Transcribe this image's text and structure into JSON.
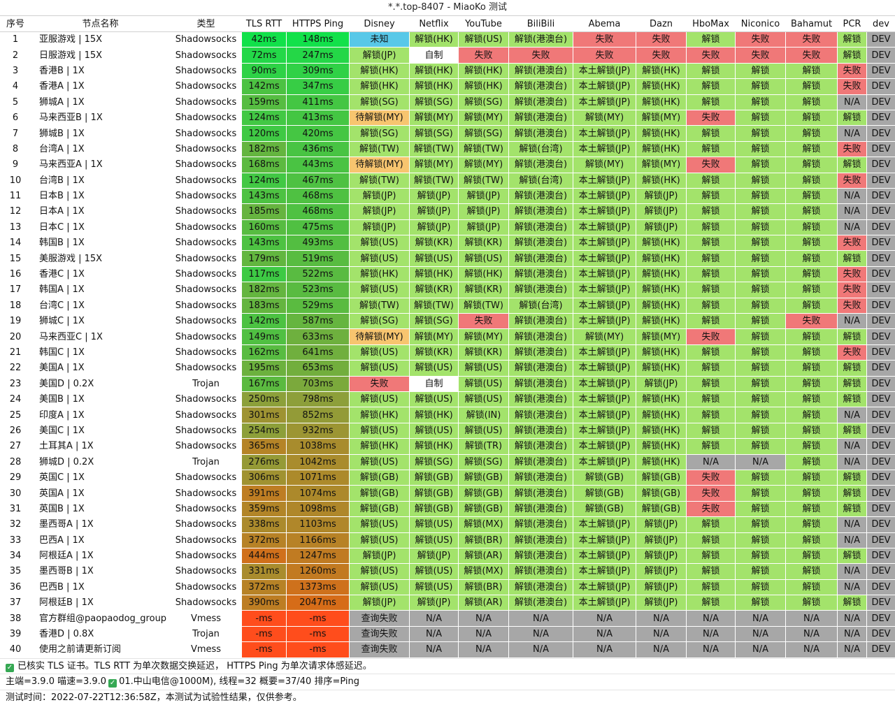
{
  "window": {
    "title": "*.*.top-8407 - MiaoKo 测试"
  },
  "columns": [
    "序号",
    "节点名称",
    "类型",
    "TLS RTT",
    "HTTPS Ping",
    "Disney",
    "Netflix",
    "YouTube",
    "BiliBili",
    "Abema",
    "Dazn",
    "HboMax",
    "Niconico",
    "Bahamut",
    "PCR",
    "dev"
  ],
  "rows": [
    [
      "1",
      "亚服游戏 | 15X",
      "Shadowsocks",
      "42ms",
      "148ms",
      "未知",
      "解锁(HK)",
      "解锁(US)",
      "解锁(港澳台)",
      "失败",
      "失败",
      "解锁",
      "失败",
      "失败",
      "解锁",
      "DEV"
    ],
    [
      "2",
      "日服游戏 | 15X",
      "Shadowsocks",
      "72ms",
      "247ms",
      "解锁(JP)",
      "自制",
      "失败",
      "失败",
      "失败",
      "失败",
      "失败",
      "失败",
      "失败",
      "解锁",
      "DEV"
    ],
    [
      "3",
      "香港B | 1X",
      "Shadowsocks",
      "90ms",
      "309ms",
      "解锁(HK)",
      "解锁(HK)",
      "解锁(HK)",
      "解锁(港澳台)",
      "本土解锁(JP)",
      "解锁(HK)",
      "解锁",
      "解锁",
      "解锁",
      "失败",
      "DEV"
    ],
    [
      "4",
      "香港A | 1X",
      "Shadowsocks",
      "142ms",
      "347ms",
      "解锁(HK)",
      "解锁(HK)",
      "解锁(HK)",
      "解锁(港澳台)",
      "本土解锁(JP)",
      "解锁(HK)",
      "解锁",
      "解锁",
      "解锁",
      "失败",
      "DEV"
    ],
    [
      "5",
      "狮城A | 1X",
      "Shadowsocks",
      "159ms",
      "411ms",
      "解锁(SG)",
      "解锁(SG)",
      "解锁(SG)",
      "解锁(港澳台)",
      "本土解锁(JP)",
      "解锁(HK)",
      "解锁",
      "解锁",
      "解锁",
      "N/A",
      "DEV"
    ],
    [
      "6",
      "马来西亚B | 1X",
      "Shadowsocks",
      "124ms",
      "413ms",
      "待解锁(MY)",
      "解锁(MY)",
      "解锁(MY)",
      "解锁(港澳台)",
      "解锁(MY)",
      "解锁(MY)",
      "失败",
      "解锁",
      "解锁",
      "解锁",
      "DEV"
    ],
    [
      "7",
      "狮城B | 1X",
      "Shadowsocks",
      "120ms",
      "420ms",
      "解锁(SG)",
      "解锁(SG)",
      "解锁(SG)",
      "解锁(港澳台)",
      "本土解锁(JP)",
      "解锁(HK)",
      "解锁",
      "解锁",
      "解锁",
      "N/A",
      "DEV"
    ],
    [
      "8",
      "台湾A | 1X",
      "Shadowsocks",
      "182ms",
      "436ms",
      "解锁(TW)",
      "解锁(TW)",
      "解锁(TW)",
      "解锁(台湾)",
      "本土解锁(JP)",
      "解锁(HK)",
      "解锁",
      "解锁",
      "解锁",
      "失败",
      "DEV"
    ],
    [
      "9",
      "马来西亚A | 1X",
      "Shadowsocks",
      "168ms",
      "443ms",
      "待解锁(MY)",
      "解锁(MY)",
      "解锁(MY)",
      "解锁(港澳台)",
      "解锁(MY)",
      "解锁(MY)",
      "失败",
      "解锁",
      "解锁",
      "解锁",
      "DEV"
    ],
    [
      "10",
      "台湾B | 1X",
      "Shadowsocks",
      "124ms",
      "467ms",
      "解锁(TW)",
      "解锁(TW)",
      "解锁(TW)",
      "解锁(台湾)",
      "本土解锁(JP)",
      "解锁(HK)",
      "解锁",
      "解锁",
      "解锁",
      "失败",
      "DEV"
    ],
    [
      "11",
      "日本B | 1X",
      "Shadowsocks",
      "143ms",
      "468ms",
      "解锁(JP)",
      "解锁(JP)",
      "解锁(JP)",
      "解锁(港澳台)",
      "本土解锁(JP)",
      "解锁(JP)",
      "解锁",
      "解锁",
      "解锁",
      "N/A",
      "DEV"
    ],
    [
      "12",
      "日本A | 1X",
      "Shadowsocks",
      "185ms",
      "468ms",
      "解锁(JP)",
      "解锁(JP)",
      "解锁(JP)",
      "解锁(港澳台)",
      "本土解锁(JP)",
      "解锁(JP)",
      "解锁",
      "解锁",
      "解锁",
      "N/A",
      "DEV"
    ],
    [
      "13",
      "日本C | 1X",
      "Shadowsocks",
      "160ms",
      "475ms",
      "解锁(JP)",
      "解锁(JP)",
      "解锁(JP)",
      "解锁(港澳台)",
      "本土解锁(JP)",
      "解锁(JP)",
      "解锁",
      "解锁",
      "解锁",
      "N/A",
      "DEV"
    ],
    [
      "14",
      "韩国B | 1X",
      "Shadowsocks",
      "143ms",
      "493ms",
      "解锁(US)",
      "解锁(KR)",
      "解锁(KR)",
      "解锁(港澳台)",
      "本土解锁(JP)",
      "解锁(HK)",
      "解锁",
      "解锁",
      "解锁",
      "失败",
      "DEV"
    ],
    [
      "15",
      "美服游戏 | 15X",
      "Shadowsocks",
      "179ms",
      "519ms",
      "解锁(US)",
      "解锁(US)",
      "解锁(US)",
      "解锁(港澳台)",
      "本土解锁(JP)",
      "解锁(HK)",
      "解锁",
      "解锁",
      "解锁",
      "解锁",
      "DEV"
    ],
    [
      "16",
      "香港C | 1X",
      "Shadowsocks",
      "117ms",
      "522ms",
      "解锁(HK)",
      "解锁(HK)",
      "解锁(HK)",
      "解锁(港澳台)",
      "本土解锁(JP)",
      "解锁(HK)",
      "解锁",
      "解锁",
      "解锁",
      "失败",
      "DEV"
    ],
    [
      "17",
      "韩国A | 1X",
      "Shadowsocks",
      "182ms",
      "523ms",
      "解锁(US)",
      "解锁(KR)",
      "解锁(KR)",
      "解锁(港澳台)",
      "本土解锁(JP)",
      "解锁(HK)",
      "解锁",
      "解锁",
      "解锁",
      "失败",
      "DEV"
    ],
    [
      "18",
      "台湾C | 1X",
      "Shadowsocks",
      "183ms",
      "529ms",
      "解锁(TW)",
      "解锁(TW)",
      "解锁(TW)",
      "解锁(台湾)",
      "本土解锁(JP)",
      "解锁(HK)",
      "解锁",
      "解锁",
      "解锁",
      "失败",
      "DEV"
    ],
    [
      "19",
      "狮城C | 1X",
      "Shadowsocks",
      "142ms",
      "587ms",
      "解锁(SG)",
      "解锁(SG)",
      "失败",
      "解锁(港澳台)",
      "本土解锁(JP)",
      "解锁(HK)",
      "解锁",
      "解锁",
      "失败",
      "N/A",
      "DEV"
    ],
    [
      "20",
      "马来西亚C | 1X",
      "Shadowsocks",
      "149ms",
      "633ms",
      "待解锁(MY)",
      "解锁(MY)",
      "解锁(MY)",
      "解锁(港澳台)",
      "解锁(MY)",
      "解锁(MY)",
      "失败",
      "解锁",
      "解锁",
      "解锁",
      "DEV"
    ],
    [
      "21",
      "韩国C | 1X",
      "Shadowsocks",
      "162ms",
      "641ms",
      "解锁(US)",
      "解锁(KR)",
      "解锁(KR)",
      "解锁(港澳台)",
      "本土解锁(JP)",
      "解锁(HK)",
      "解锁",
      "解锁",
      "解锁",
      "失败",
      "DEV"
    ],
    [
      "22",
      "美国A | 1X",
      "Shadowsocks",
      "195ms",
      "653ms",
      "解锁(US)",
      "解锁(US)",
      "解锁(US)",
      "解锁(港澳台)",
      "本土解锁(JP)",
      "解锁(HK)",
      "解锁",
      "解锁",
      "解锁",
      "解锁",
      "DEV"
    ],
    [
      "23",
      "美国D | 0.2X",
      "Trojan",
      "167ms",
      "703ms",
      "失败",
      "自制",
      "解锁(US)",
      "解锁(港澳台)",
      "本土解锁(JP)",
      "解锁(JP)",
      "解锁",
      "解锁",
      "解锁",
      "解锁",
      "DEV"
    ],
    [
      "24",
      "美国B | 1X",
      "Shadowsocks",
      "250ms",
      "798ms",
      "解锁(US)",
      "解锁(US)",
      "解锁(US)",
      "解锁(港澳台)",
      "本土解锁(JP)",
      "解锁(HK)",
      "解锁",
      "解锁",
      "解锁",
      "解锁",
      "DEV"
    ],
    [
      "25",
      "印度A | 1X",
      "Shadowsocks",
      "301ms",
      "852ms",
      "解锁(HK)",
      "解锁(HK)",
      "解锁(IN)",
      "解锁(港澳台)",
      "本土解锁(JP)",
      "解锁(HK)",
      "解锁",
      "解锁",
      "解锁",
      "N/A",
      "DEV"
    ],
    [
      "26",
      "美国C | 1X",
      "Shadowsocks",
      "254ms",
      "932ms",
      "解锁(US)",
      "解锁(US)",
      "解锁(US)",
      "解锁(港澳台)",
      "本土解锁(JP)",
      "解锁(HK)",
      "解锁",
      "解锁",
      "解锁",
      "解锁",
      "DEV"
    ],
    [
      "27",
      "土耳其A | 1X",
      "Shadowsocks",
      "365ms",
      "1038ms",
      "解锁(HK)",
      "解锁(HK)",
      "解锁(TR)",
      "解锁(港澳台)",
      "本土解锁(JP)",
      "解锁(HK)",
      "解锁",
      "解锁",
      "解锁",
      "N/A",
      "DEV"
    ],
    [
      "28",
      "狮城D | 0.2X",
      "Trojan",
      "276ms",
      "1042ms",
      "解锁(US)",
      "解锁(SG)",
      "解锁(SG)",
      "解锁(港澳台)",
      "本土解锁(JP)",
      "解锁(HK)",
      "N/A",
      "N/A",
      "解锁",
      "N/A",
      "DEV"
    ],
    [
      "29",
      "英国C | 1X",
      "Shadowsocks",
      "306ms",
      "1071ms",
      "解锁(GB)",
      "解锁(GB)",
      "解锁(GB)",
      "解锁(港澳台)",
      "解锁(GB)",
      "解锁(GB)",
      "失败",
      "解锁",
      "解锁",
      "解锁",
      "DEV"
    ],
    [
      "30",
      "英国A | 1X",
      "Shadowsocks",
      "391ms",
      "1074ms",
      "解锁(GB)",
      "解锁(GB)",
      "解锁(GB)",
      "解锁(港澳台)",
      "解锁(GB)",
      "解锁(GB)",
      "失败",
      "解锁",
      "解锁",
      "解锁",
      "DEV"
    ],
    [
      "31",
      "英国B | 1X",
      "Shadowsocks",
      "359ms",
      "1098ms",
      "解锁(GB)",
      "解锁(GB)",
      "解锁(GB)",
      "解锁(港澳台)",
      "解锁(GB)",
      "解锁(GB)",
      "失败",
      "解锁",
      "解锁",
      "解锁",
      "DEV"
    ],
    [
      "32",
      "墨西哥A | 1X",
      "Shadowsocks",
      "338ms",
      "1103ms",
      "解锁(US)",
      "解锁(US)",
      "解锁(MX)",
      "解锁(港澳台)",
      "本土解锁(JP)",
      "解锁(JP)",
      "解锁",
      "解锁",
      "解锁",
      "N/A",
      "DEV"
    ],
    [
      "33",
      "巴西A | 1X",
      "Shadowsocks",
      "372ms",
      "1166ms",
      "解锁(US)",
      "解锁(US)",
      "解锁(BR)",
      "解锁(港澳台)",
      "本土解锁(JP)",
      "解锁(JP)",
      "解锁",
      "解锁",
      "解锁",
      "N/A",
      "DEV"
    ],
    [
      "34",
      "阿根廷A | 1X",
      "Shadowsocks",
      "444ms",
      "1247ms",
      "解锁(JP)",
      "解锁(JP)",
      "解锁(AR)",
      "解锁(港澳台)",
      "本土解锁(JP)",
      "解锁(JP)",
      "解锁",
      "解锁",
      "解锁",
      "解锁",
      "DEV"
    ],
    [
      "35",
      "墨西哥B | 1X",
      "Shadowsocks",
      "331ms",
      "1260ms",
      "解锁(US)",
      "解锁(US)",
      "解锁(MX)",
      "解锁(港澳台)",
      "本土解锁(JP)",
      "解锁(JP)",
      "解锁",
      "解锁",
      "解锁",
      "N/A",
      "DEV"
    ],
    [
      "36",
      "巴西B | 1X",
      "Shadowsocks",
      "372ms",
      "1373ms",
      "解锁(US)",
      "解锁(US)",
      "解锁(BR)",
      "解锁(港澳台)",
      "本土解锁(JP)",
      "解锁(JP)",
      "解锁",
      "解锁",
      "解锁",
      "N/A",
      "DEV"
    ],
    [
      "37",
      "阿根廷B | 1X",
      "Shadowsocks",
      "390ms",
      "2047ms",
      "解锁(JP)",
      "解锁(JP)",
      "解锁(AR)",
      "解锁(港澳台)",
      "本土解锁(JP)",
      "解锁(JP)",
      "解锁",
      "解锁",
      "解锁",
      "解锁",
      "DEV"
    ],
    [
      "38",
      "官方群组@paopaodog_group",
      "Vmess",
      "-ms",
      "-ms",
      "查询失败",
      "N/A",
      "N/A",
      "N/A",
      "N/A",
      "N/A",
      "N/A",
      "N/A",
      "N/A",
      "N/A",
      "DEV"
    ],
    [
      "39",
      "香港D | 0.8X",
      "Trojan",
      "-ms",
      "-ms",
      "查询失败",
      "N/A",
      "N/A",
      "N/A",
      "N/A",
      "N/A",
      "N/A",
      "N/A",
      "N/A",
      "N/A",
      "DEV"
    ],
    [
      "40",
      "使用之前请更新订阅",
      "Vmess",
      "-ms",
      "-ms",
      "查询失败",
      "N/A",
      "N/A",
      "N/A",
      "N/A",
      "N/A",
      "N/A",
      "N/A",
      "N/A",
      "N/A",
      "DEV"
    ]
  ],
  "footer": {
    "line1": "已核实 TLS 证书。TLS RTT 为单次数据交换延迟， HTTPS Ping 为单次请求体感延迟。",
    "line2a": "主端=3.9.0 喵速=3.9.0",
    "line2b": "01.中山电信@1000M), 线程=32 概要=37/40 排序=Ping",
    "line3": "测试时间：2022-07-22T12:36:58Z，本测试为试验性结果，仅供参考。"
  },
  "colors": {
    "unlock": "#a3e36b",
    "fail": "#f07878",
    "na": "#a7a7a7",
    "unknown": "#58c8e8",
    "pending": "#f7c56f",
    "selfmade": "#ffffff",
    "dev": "#a7a7a7",
    "error": "#ff4d1c"
  }
}
